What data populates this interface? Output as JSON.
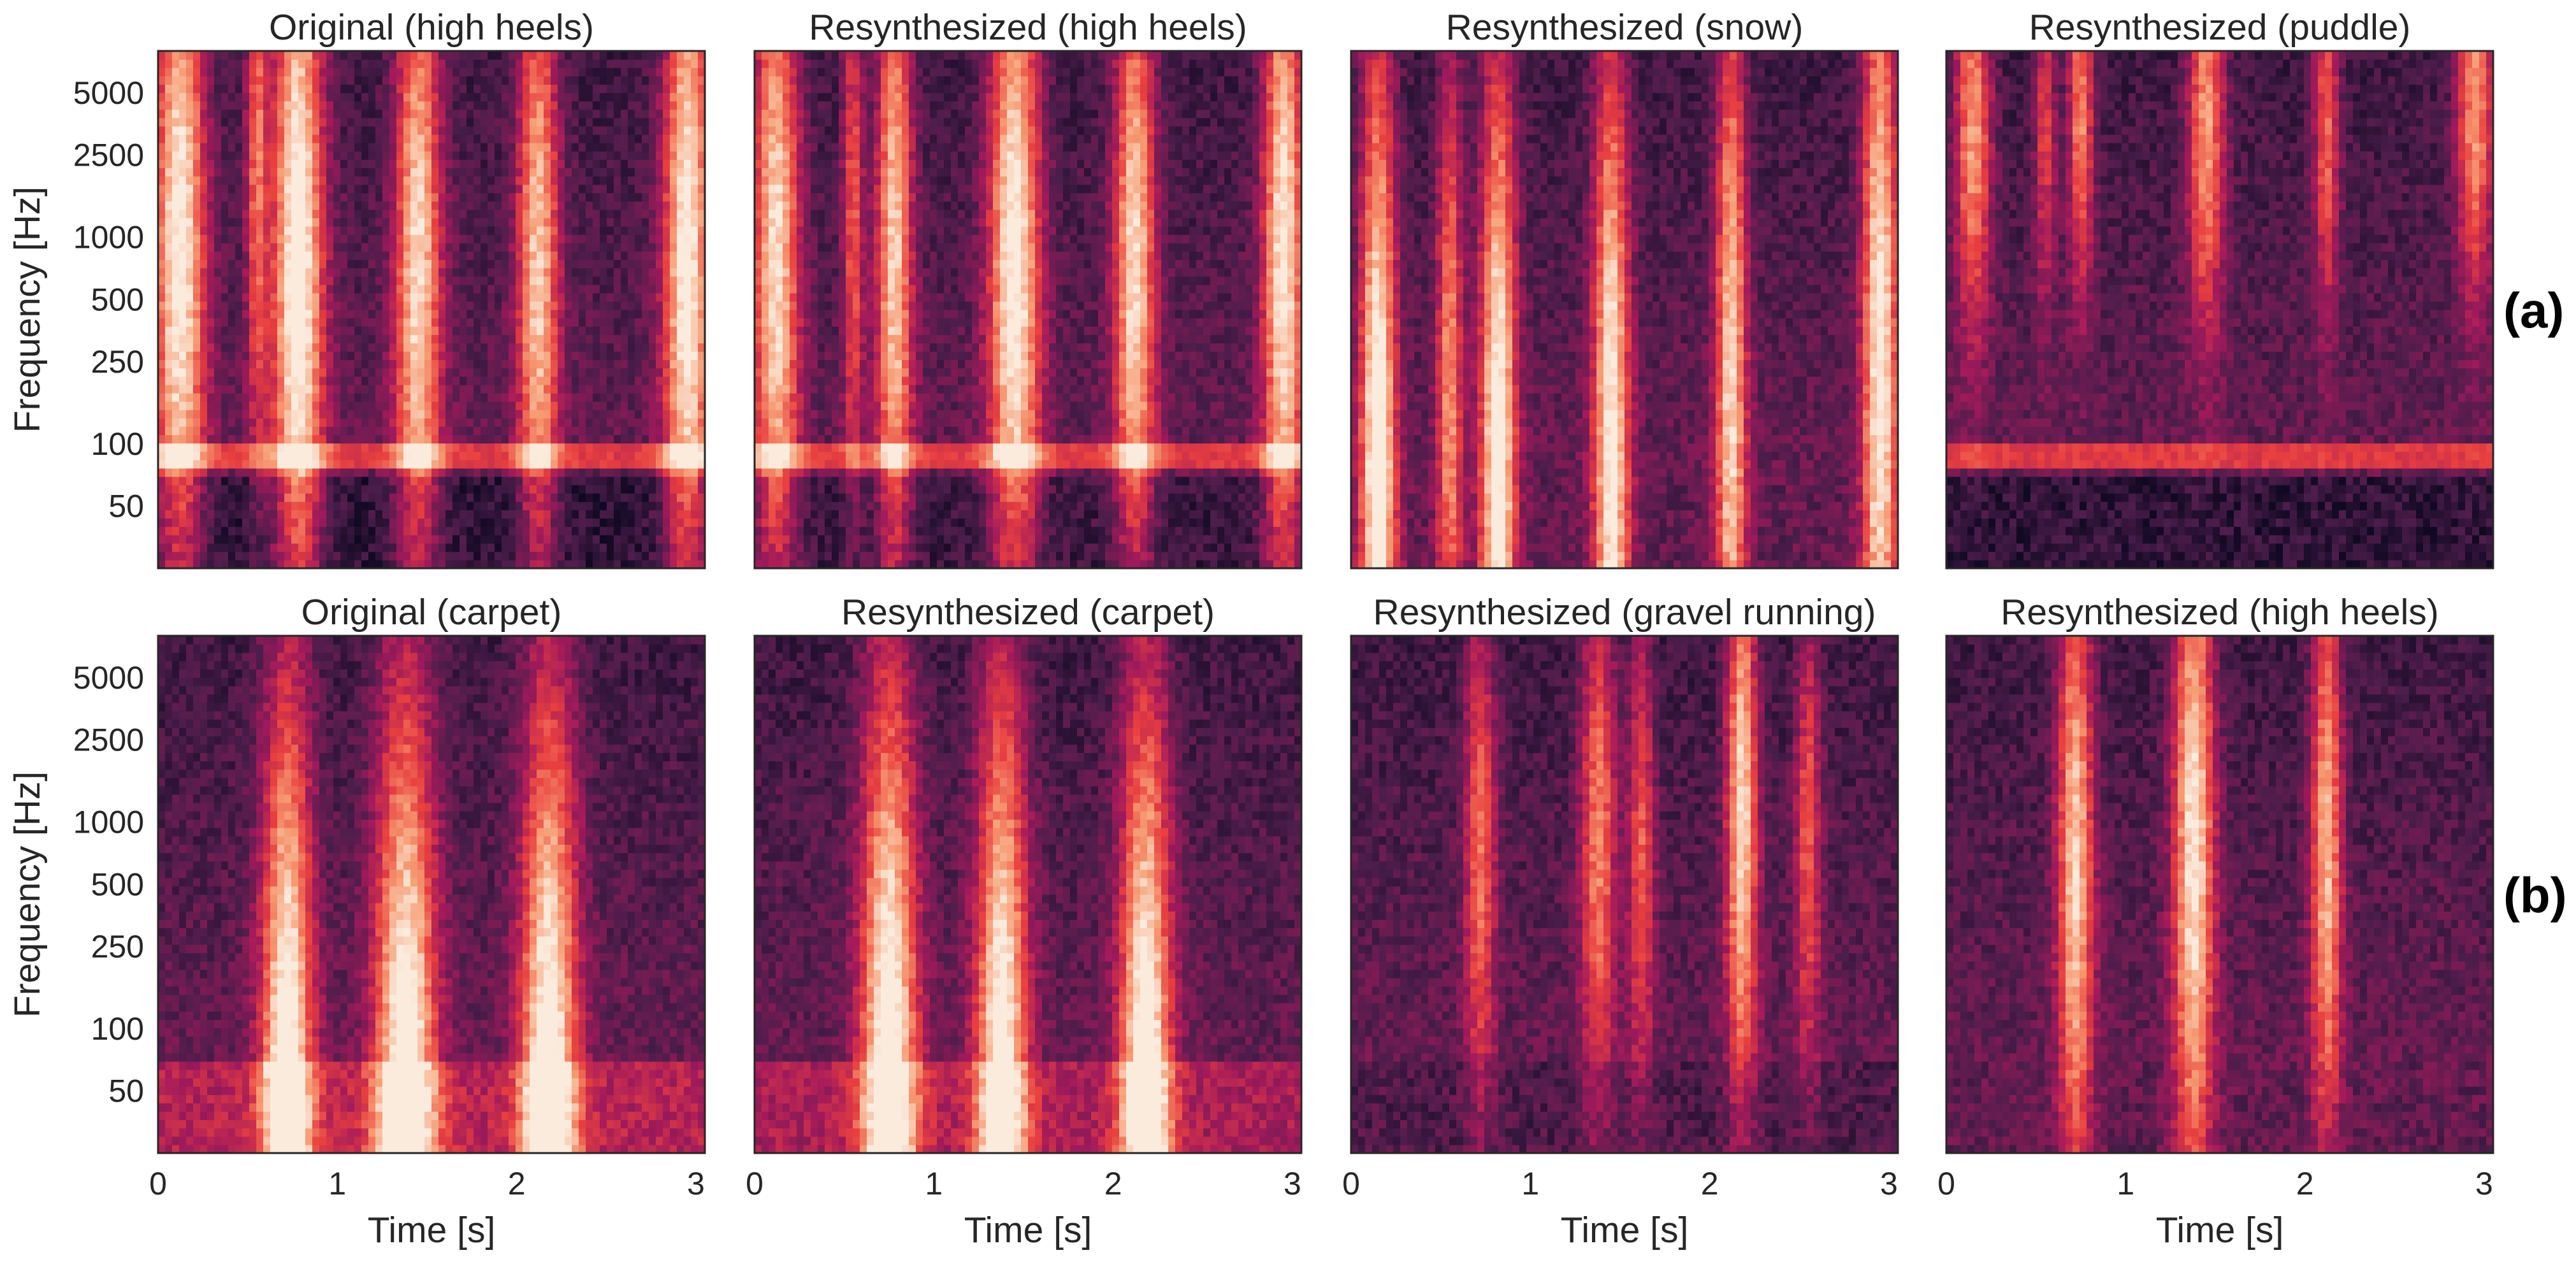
{
  "chart_data": {
    "type": "heatmap",
    "colormap": "rocket",
    "colors": [
      "#03051a",
      "#4c1d4b",
      "#a11a5b",
      "#e83f3f",
      "#f69c73",
      "#faebdd"
    ],
    "grid": false,
    "y_scale": "log",
    "ylabel": "Frequency [Hz]",
    "xlabel": "Time [s]",
    "xlim": [
      0,
      3.05
    ],
    "ylim": [
      25,
      8000
    ],
    "yticks": [
      50,
      100,
      250,
      500,
      1000,
      2500,
      5000
    ],
    "ytick_labels": [
      "50",
      "100",
      "250",
      "500",
      "1000",
      "2500",
      "5000"
    ],
    "xticks": [
      0,
      1,
      2,
      3
    ],
    "xtick_labels": [
      "0",
      "1",
      "2",
      "3"
    ],
    "rows": [
      {
        "label": "(a)",
        "panels": [
          {
            "title": "Original (high heels)",
            "low_band": true,
            "low_level": 0.12,
            "events": [
              {
                "t": 0.12,
                "f_center": 1000,
                "strength": 0.95,
                "width": 0.1,
                "spread": 2.4
              },
              {
                "t": 0.55,
                "f_center": 3000,
                "strength": 0.55,
                "width": 0.04,
                "spread": 2.0
              },
              {
                "t": 0.78,
                "f_center": 900,
                "strength": 1.0,
                "width": 0.1,
                "spread": 2.6
              },
              {
                "t": 1.45,
                "f_center": 800,
                "strength": 0.85,
                "width": 0.09,
                "spread": 2.3
              },
              {
                "t": 2.12,
                "f_center": 800,
                "strength": 0.8,
                "width": 0.08,
                "spread": 2.2
              },
              {
                "t": 2.95,
                "f_center": 900,
                "strength": 0.95,
                "width": 0.09,
                "spread": 2.5
              }
            ]
          },
          {
            "title": "Resynthesized (high heels)",
            "low_band": true,
            "low_level": 0.15,
            "events": [
              {
                "t": 0.12,
                "f_center": 900,
                "strength": 0.85,
                "width": 0.09,
                "spread": 2.4
              },
              {
                "t": 0.55,
                "f_center": 1500,
                "strength": 0.5,
                "width": 0.04,
                "spread": 2.0
              },
              {
                "t": 0.78,
                "f_center": 900,
                "strength": 0.8,
                "width": 0.07,
                "spread": 2.4
              },
              {
                "t": 1.45,
                "f_center": 800,
                "strength": 0.95,
                "width": 0.1,
                "spread": 2.4
              },
              {
                "t": 2.12,
                "f_center": 800,
                "strength": 0.85,
                "width": 0.08,
                "spread": 2.2
              },
              {
                "t": 2.95,
                "f_center": 1000,
                "strength": 0.9,
                "width": 0.08,
                "spread": 2.5
              }
            ]
          },
          {
            "title": "Resynthesized (snow)",
            "low_band": false,
            "low_level": 0.25,
            "events": [
              {
                "t": 0.15,
                "f_center": 60,
                "strength": 1.0,
                "width": 0.07,
                "spread": 3.2
              },
              {
                "t": 0.55,
                "f_center": 200,
                "strength": 0.6,
                "width": 0.05,
                "spread": 2.5
              },
              {
                "t": 0.82,
                "f_center": 80,
                "strength": 0.95,
                "width": 0.07,
                "spread": 3.0
              },
              {
                "t": 1.45,
                "f_center": 100,
                "strength": 0.9,
                "width": 0.07,
                "spread": 3.0
              },
              {
                "t": 2.12,
                "f_center": 200,
                "strength": 0.8,
                "width": 0.06,
                "spread": 3.0
              },
              {
                "t": 2.95,
                "f_center": 300,
                "strength": 0.9,
                "width": 0.07,
                "spread": 3.2
              }
            ]
          },
          {
            "title": "Resynthesized (puddle)",
            "low_band": true,
            "low_level": 0.12,
            "events": [
              {
                "t": 0.15,
                "f_center": 3500,
                "strength": 0.7,
                "width": 0.07,
                "spread": 1.4
              },
              {
                "t": 0.55,
                "f_center": 3500,
                "strength": 0.45,
                "width": 0.04,
                "spread": 1.2
              },
              {
                "t": 0.75,
                "f_center": 4000,
                "strength": 0.65,
                "width": 0.05,
                "spread": 1.2
              },
              {
                "t": 1.45,
                "f_center": 3500,
                "strength": 0.7,
                "width": 0.07,
                "spread": 1.4
              },
              {
                "t": 2.12,
                "f_center": 3500,
                "strength": 0.55,
                "width": 0.05,
                "spread": 1.3
              },
              {
                "t": 2.95,
                "f_center": 4500,
                "strength": 0.7,
                "width": 0.07,
                "spread": 1.3
              }
            ]
          }
        ]
      },
      {
        "label": "(b)",
        "panels": [
          {
            "title": "Original (carpet)",
            "low_band": false,
            "low_level": 0.45,
            "events": [
              {
                "t": 0.72,
                "f_center": 40,
                "strength": 1.0,
                "width": 0.1,
                "spread": 3.0
              },
              {
                "t": 1.38,
                "f_center": 40,
                "strength": 1.0,
                "width": 0.12,
                "spread": 3.0
              },
              {
                "t": 2.18,
                "f_center": 40,
                "strength": 1.0,
                "width": 0.11,
                "spread": 3.0
              }
            ]
          },
          {
            "title": "Resynthesized (carpet)",
            "low_band": false,
            "low_level": 0.42,
            "events": [
              {
                "t": 0.75,
                "f_center": 50,
                "strength": 1.0,
                "width": 0.11,
                "spread": 3.0
              },
              {
                "t": 1.38,
                "f_center": 50,
                "strength": 0.95,
                "width": 0.1,
                "spread": 3.0
              },
              {
                "t": 2.18,
                "f_center": 40,
                "strength": 1.0,
                "width": 0.1,
                "spread": 3.0
              }
            ]
          },
          {
            "title": "Resynthesized (gravel running)",
            "low_band": false,
            "low_level": 0.2,
            "events": [
              {
                "t": 0.72,
                "f_center": 800,
                "strength": 0.55,
                "width": 0.06,
                "spread": 1.8
              },
              {
                "t": 1.38,
                "f_center": 900,
                "strength": 0.6,
                "width": 0.07,
                "spread": 1.8
              },
              {
                "t": 1.62,
                "f_center": 800,
                "strength": 0.5,
                "width": 0.05,
                "spread": 1.6
              },
              {
                "t": 2.18,
                "f_center": 1200,
                "strength": 0.85,
                "width": 0.06,
                "spread": 2.0
              },
              {
                "t": 2.55,
                "f_center": 900,
                "strength": 0.5,
                "width": 0.05,
                "spread": 1.6
              }
            ]
          },
          {
            "title": "Resynthesized (high heels)",
            "low_band": false,
            "low_level": 0.25,
            "events": [
              {
                "t": 0.72,
                "f_center": 700,
                "strength": 0.8,
                "width": 0.07,
                "spread": 2.2
              },
              {
                "t": 1.38,
                "f_center": 900,
                "strength": 0.9,
                "width": 0.08,
                "spread": 2.4
              },
              {
                "t": 2.12,
                "f_center": 800,
                "strength": 0.75,
                "width": 0.06,
                "spread": 2.0
              }
            ]
          }
        ]
      }
    ]
  }
}
